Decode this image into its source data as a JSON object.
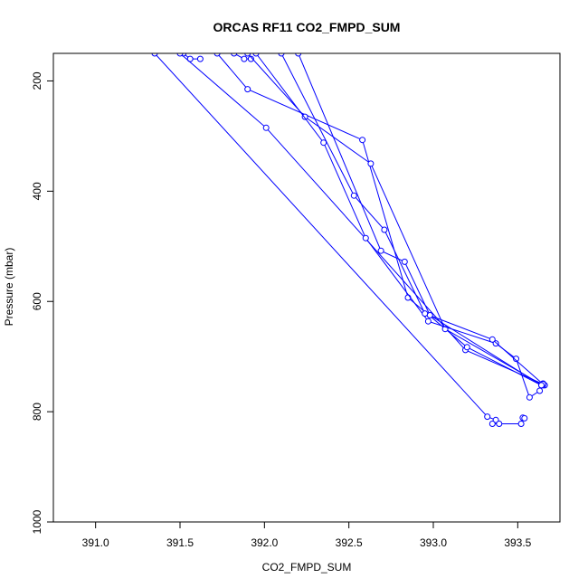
{
  "chart_data": {
    "type": "line",
    "title": "ORCAS RF11 CO2_FMPD_SUM",
    "xlabel": "CO2_FMPD_SUM",
    "ylabel": "Pressure (mbar)",
    "xlim": [
      390.75,
      393.75
    ],
    "ylim": [
      1000,
      150
    ],
    "y_reversed": true,
    "xticks": [
      391.0,
      391.5,
      392.0,
      392.5,
      393.0,
      393.5
    ],
    "xtick_labels": [
      "391.0",
      "391.5",
      "392.0",
      "392.5",
      "393.0",
      "393.5"
    ],
    "yticks": [
      200,
      400,
      600,
      800,
      1000
    ],
    "ytick_labels": [
      "200",
      "400",
      "600",
      "800",
      "1000"
    ],
    "grid": false,
    "marker": "open-circle",
    "color": "#0000ff",
    "series": [
      {
        "x": [
          391.35,
          393.32,
          393.37,
          393.35,
          393.39,
          393.52,
          393.53,
          393.54
        ],
        "y": [
          150,
          809,
          815,
          822,
          822,
          822,
          811,
          812
        ]
      },
      {
        "x": [
          391.52,
          391.56,
          391.62
        ],
        "y": [
          150,
          160,
          160
        ]
      },
      {
        "x": [
          391.5,
          392.01,
          393.19,
          393.65,
          393.66,
          393.65
        ],
        "y": [
          150,
          285,
          688,
          750,
          752,
          749
        ]
      },
      {
        "x": [
          391.82,
          391.88,
          391.92
        ],
        "y": [
          150,
          160,
          160
        ]
      },
      {
        "x": [
          391.72,
          391.9,
          392.58,
          392.85,
          393.2,
          393.64
        ],
        "y": [
          150,
          215,
          307,
          593,
          683,
          752
        ]
      },
      {
        "x": [
          391.9,
          392.24,
          392.63,
          393.07,
          393.65
        ],
        "y": [
          150,
          265,
          350,
          650,
          752
        ]
      },
      {
        "x": [
          391.95,
          392.35,
          392.6,
          392.97,
          393.37,
          393.49,
          393.57,
          393.63
        ],
        "y": [
          150,
          312,
          485,
          636,
          676,
          704,
          774,
          762
        ]
      },
      {
        "x": [
          392.1,
          392.53,
          392.71,
          392.95,
          393.35,
          393.65
        ],
        "y": [
          150,
          408,
          470,
          622,
          669,
          750
        ]
      },
      {
        "x": [
          392.2,
          392.69,
          392.83,
          392.98,
          393.64
        ],
        "y": [
          150,
          508,
          528,
          625,
          752
        ]
      }
    ]
  }
}
